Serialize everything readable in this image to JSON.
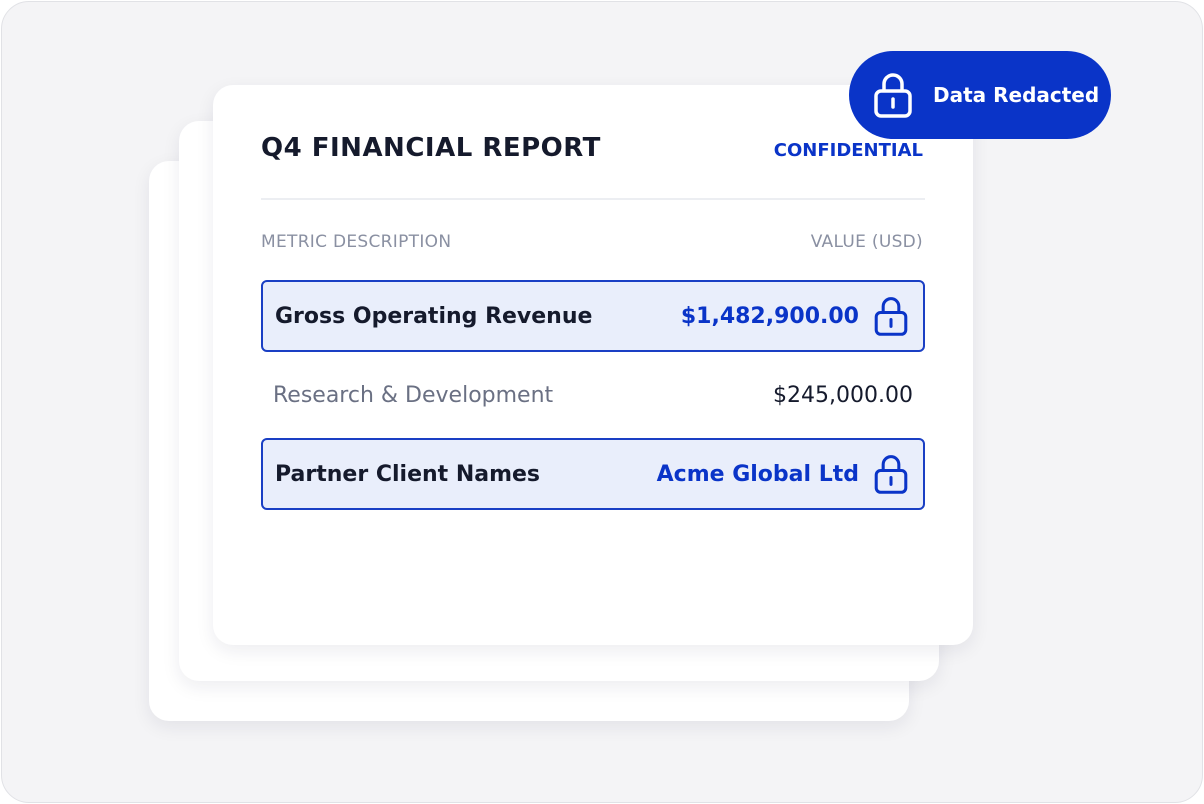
{
  "badge": {
    "text": "Data Redacted"
  },
  "card": {
    "title": "Q4 FINANCIAL REPORT",
    "tag": "CONFIDENTIAL",
    "table": {
      "headers": [
        "METRIC DESCRIPTION",
        "VALUE (USD)"
      ],
      "rows": [
        {
          "label": "Gross Operating Revenue",
          "value": "$1,482,900.00",
          "locked": true
        },
        {
          "label": "Research & Development",
          "value": "$245,000.00",
          "locked": false
        },
        {
          "label": "Partner Client Names",
          "value": "Acme Global Ltd",
          "locked": true
        }
      ]
    }
  }
}
